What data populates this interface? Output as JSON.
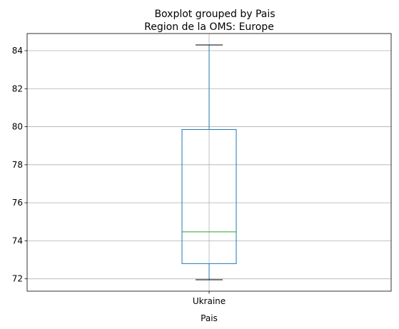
{
  "chart_data": {
    "type": "boxplot",
    "suptitle": "Boxplot grouped by Pais",
    "title": "Region de la OMS: Europe",
    "xlabel": "Pais",
    "ylabel": "",
    "categories": [
      "Ukraine"
    ],
    "boxes": [
      {
        "category": "Ukraine",
        "whisker_low": 71.95,
        "q1": 72.8,
        "median": 74.47,
        "q3": 79.85,
        "whisker_high": 84.3
      }
    ],
    "ylim": [
      71.35,
      84.9
    ],
    "yticks": [
      72,
      74,
      76,
      78,
      80,
      82,
      84
    ],
    "grid": true,
    "colors": {
      "box": "#1f77b4",
      "median": "#2ca02c",
      "whisker_cap": "#000000",
      "grid": "#b0b0b0"
    }
  }
}
